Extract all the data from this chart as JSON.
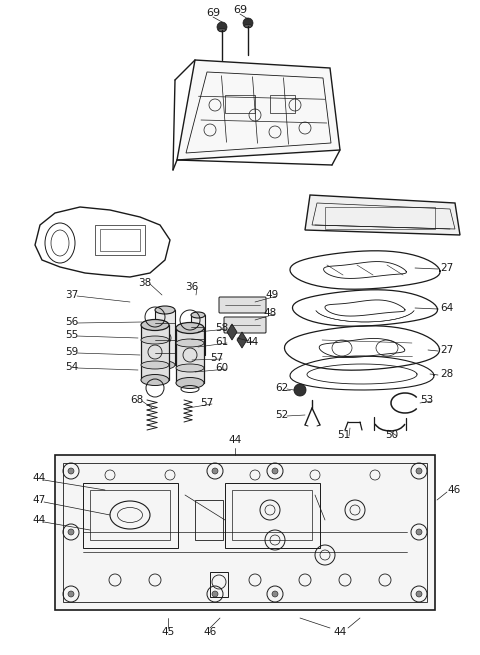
{
  "bg_color": "#ffffff",
  "line_color": "#1a1a1a",
  "text_color": "#1a1a1a",
  "fig_width": 4.8,
  "fig_height": 6.55,
  "dpi": 100,
  "font_size": 7.5
}
